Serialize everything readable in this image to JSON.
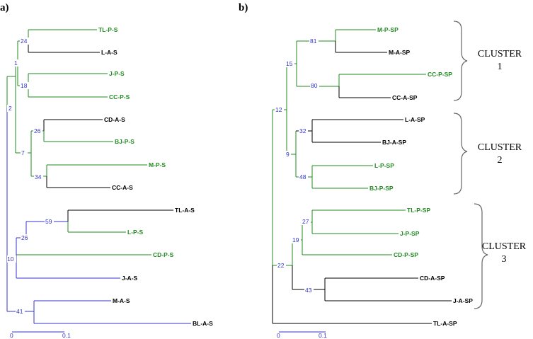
{
  "colors": {
    "green": "#228b22",
    "black": "#000000",
    "blue": "#3333cc",
    "brace": "#666666"
  },
  "panels": [
    {
      "label": "a)",
      "scale": {
        "start": "0",
        "end": "0.1"
      },
      "leaves": [
        {
          "name": "TL-P-S",
          "group": "P"
        },
        {
          "name": "L-A-S",
          "group": "A"
        },
        {
          "name": "J-P-S",
          "group": "P"
        },
        {
          "name": "CC-P-S",
          "group": "P"
        },
        {
          "name": "CD-A-S",
          "group": "A"
        },
        {
          "name": "BJ-P-S",
          "group": "P"
        },
        {
          "name": "M-P-S",
          "group": "P"
        },
        {
          "name": "CC-A-S",
          "group": "A"
        },
        {
          "name": "TL-A-S",
          "group": "A"
        },
        {
          "name": "L-P-S",
          "group": "P"
        },
        {
          "name": "CD-P-S",
          "group": "P"
        },
        {
          "name": "J-A-S",
          "group": "A"
        },
        {
          "name": "M-A-S",
          "group": "A"
        },
        {
          "name": "BL-A-S",
          "group": "A"
        }
      ],
      "nodes": [
        "24",
        "1",
        "18",
        "2",
        "26",
        "7",
        "34",
        "59",
        "26",
        "10",
        "41"
      ]
    },
    {
      "label": "b)",
      "scale": {
        "start": "0",
        "end": "0.1"
      },
      "leaves": [
        {
          "name": "M-P-SP",
          "group": "P"
        },
        {
          "name": "M-A-SP",
          "group": "A"
        },
        {
          "name": "CC-P-SP",
          "group": "P"
        },
        {
          "name": "CC-A-SP",
          "group": "A"
        },
        {
          "name": "L-A-SP",
          "group": "A"
        },
        {
          "name": "BJ-A-SP",
          "group": "A"
        },
        {
          "name": "L-P-SP",
          "group": "P"
        },
        {
          "name": "BJ-P-SP",
          "group": "P"
        },
        {
          "name": "TL-P-SP",
          "group": "P"
        },
        {
          "name": "J-P-SP",
          "group": "P"
        },
        {
          "name": "CD-P-SP",
          "group": "P"
        },
        {
          "name": "CD-A-SP",
          "group": "A"
        },
        {
          "name": "J-A-SP",
          "group": "A"
        },
        {
          "name": "TL-A-SP",
          "group": "A"
        }
      ],
      "nodes": [
        "81",
        "15",
        "80",
        "12",
        "32",
        "9",
        "48",
        "27",
        "19",
        "22",
        "43"
      ],
      "clusters": [
        {
          "title": "CLUSTER",
          "number": "1"
        },
        {
          "title": "CLUSTER",
          "number": "2"
        },
        {
          "title": "CLUSTER",
          "number": "3"
        }
      ]
    }
  ]
}
